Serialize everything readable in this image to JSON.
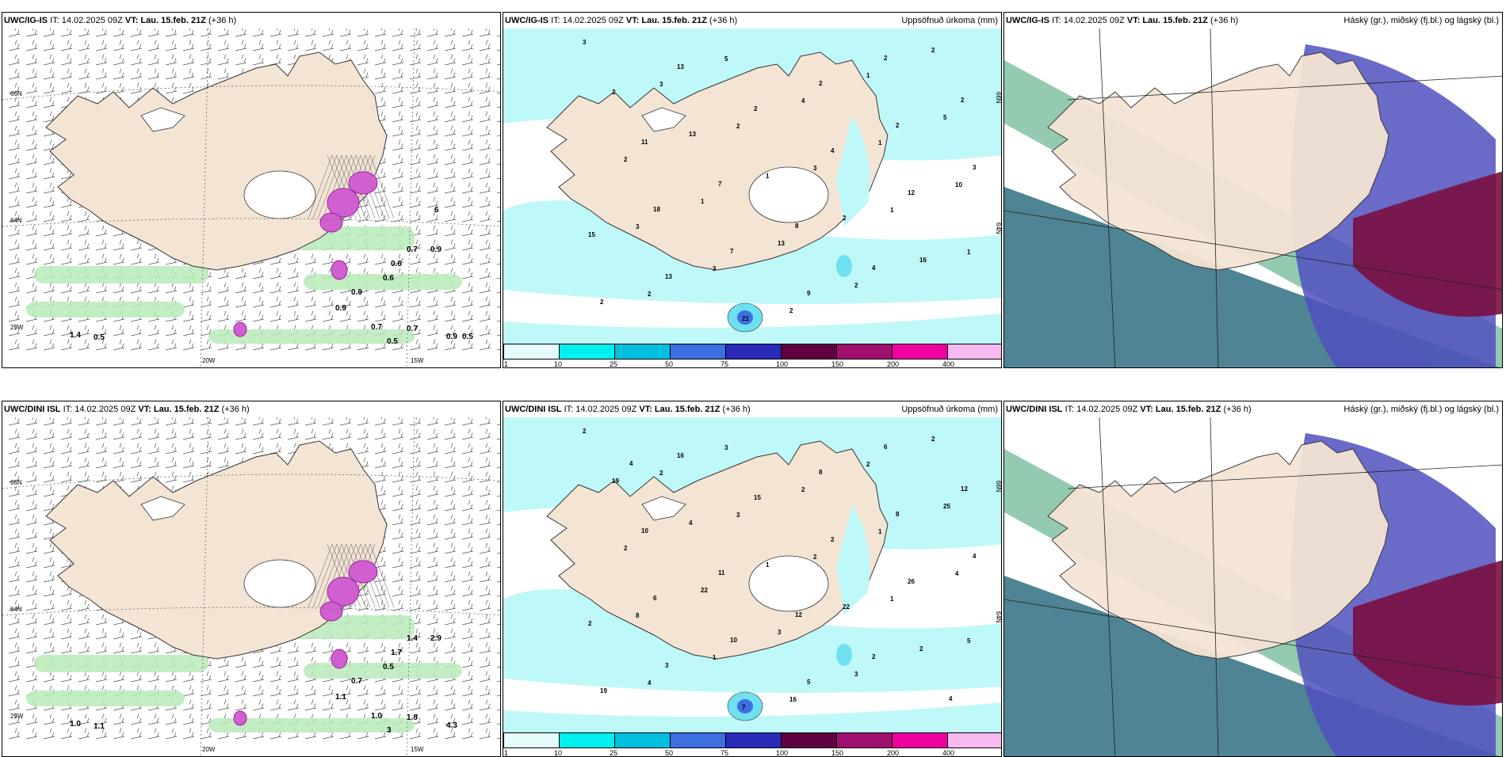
{
  "panels": [
    {
      "row": 0,
      "col": 0,
      "kind": "wind",
      "model": "UWC/IG-IS",
      "it": "IT: 14.02.2025 09Z",
      "vt_label": "VT:",
      "vt": "Lau. 15.feb. 21Z",
      "lead": "(+36 h)",
      "right": "",
      "grid_labels": [
        "66N",
        "64N",
        "20W",
        "15W",
        "25W"
      ],
      "values": [
        "0.7",
        "0.9",
        "0.6",
        "0.6",
        "0.9",
        "0.9",
        "1.4",
        "0.5",
        "0.7",
        "0.7",
        "0.5",
        "0.9",
        "0.5",
        "6"
      ]
    },
    {
      "row": 0,
      "col": 1,
      "kind": "precip",
      "model": "UWC/IG-IS",
      "it": "IT: 14.02.2025 09Z",
      "vt_label": "VT:",
      "vt": "Lau. 15.feb. 21Z",
      "lead": "(+36 h)",
      "right": "Uppsöfnuð úrkoma (mm)",
      "grid_labels": [
        "66N",
        "64N"
      ],
      "values": [
        "3",
        "3",
        "2",
        "3",
        "1",
        "1",
        "2",
        "5",
        "4",
        "1",
        "10",
        "3",
        "3",
        "2",
        "1",
        "5",
        "2",
        "1",
        "13",
        "2",
        "2",
        "2",
        "13",
        "1",
        "2",
        "16",
        "2",
        "13",
        "2",
        "4",
        "12",
        "15",
        "13",
        "21",
        "2",
        "2",
        "3",
        "18",
        "7",
        "9",
        "2",
        "2",
        "11",
        "7",
        "8",
        "4"
      ]
    },
    {
      "row": 0,
      "col": 2,
      "kind": "cloud",
      "model": "UWC/IG-IS",
      "it": "IT: 14.02.2025 09Z",
      "vt_label": "VT:",
      "vt": "Lau. 15.feb. 21Z",
      "lead": "(+36 h)",
      "right": "Háský (gr.), miðský (fj.bl.) og lágský (bl.)",
      "grid_labels": [],
      "values": []
    },
    {
      "row": 1,
      "col": 0,
      "kind": "wind",
      "model": "UWC/DINI ISL",
      "it": "IT: 14.02.2025 09Z",
      "vt_label": "VT:",
      "vt": "Lau. 15.feb. 21Z",
      "lead": "(+36 h)",
      "right": "",
      "grid_labels": [
        "66N",
        "64N",
        "20W",
        "15W",
        "25W"
      ],
      "values": [
        "1.4",
        "2.9",
        "1.7",
        "0.5",
        "0.7",
        "1.1",
        "1.0",
        "1.1",
        "1.0",
        "1.8",
        "3",
        "4.3"
      ]
    },
    {
      "row": 1,
      "col": 1,
      "kind": "precip",
      "model": "UWC/DINI ISL",
      "it": "IT: 14.02.2025 09Z",
      "vt_label": "VT:",
      "vt": "Lau. 15.feb. 21Z",
      "lead": "(+36 h)",
      "right": "Uppsöfnuð úrkoma (mm)",
      "grid_labels": [
        "66N",
        "64N"
      ],
      "values": [
        "2",
        "2",
        "3",
        "2",
        "1",
        "5",
        "4",
        "3",
        "2",
        "1",
        "4",
        "8",
        "1",
        "16",
        "2",
        "25",
        "2",
        "22",
        "3",
        "3",
        "2",
        "19",
        "4",
        "1",
        "22",
        "2",
        "19",
        "16",
        "15",
        "2",
        "26",
        "2",
        "3",
        "7",
        "8",
        "8",
        "4",
        "6",
        "10",
        "5",
        "6",
        "12",
        "10",
        "11",
        "12",
        "2",
        "4",
        "4"
      ]
    },
    {
      "row": 1,
      "col": 2,
      "kind": "cloud",
      "model": "UWC/DINI ISL",
      "it": "IT: 14.02.2025 09Z",
      "vt_label": "VT:",
      "vt": "Lau. 15.feb. 21Z",
      "lead": "(+36 h)",
      "right": "Háský (gr.), miðský (fj.bl.) og lágský (bl.)",
      "grid_labels": [],
      "values": []
    }
  ],
  "colorbar": {
    "ticks": [
      "1",
      "10",
      "25",
      "50",
      "75",
      "100",
      "150",
      "200",
      "400"
    ],
    "colors": [
      "#e6fbfb",
      "#00efef",
      "#00bfdf",
      "#3c6fe0",
      "#2a2ab8",
      "#600040",
      "#a0106e",
      "#f000a0",
      "#f8b8f0"
    ]
  },
  "colors": {
    "land": "#f4e4d4",
    "precip_light": "#bff8f8",
    "wind_green": "#b8ebb8",
    "cloud_high": "#3ca070",
    "cloud_mid": "#5050c0",
    "cloud_low": "#7a1040",
    "sea_dark": "#2f6f80"
  }
}
